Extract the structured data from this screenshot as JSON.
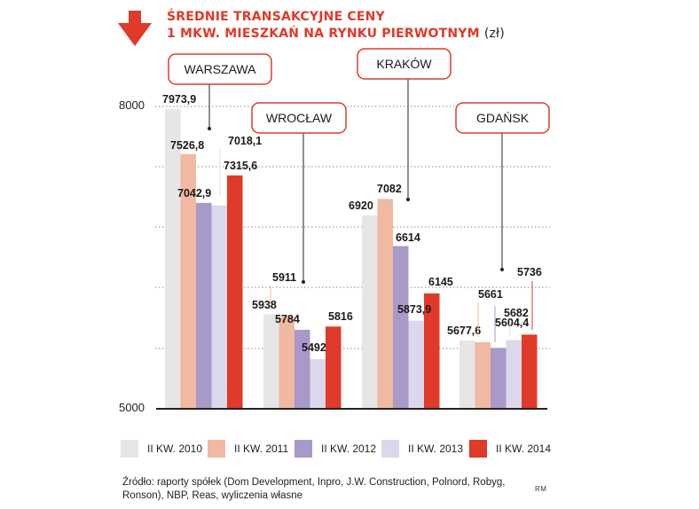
{
  "header": {
    "title_line1": "ŚREDNIE TRANSAKCYJNE CENY",
    "title_line2": "1 MKW. MIESZKAŃ NA RYNKU PIERWOTNYM",
    "unit": "(zł)"
  },
  "footer": {
    "source_line1": "Źródło: raporty spółek (Dom Development, Inpro, J.W. Construction, Polnord, Robyg,",
    "source_line2": "Ronson), NBP, Reas, wyliczenia własne",
    "author": "RM"
  },
  "colors": {
    "accent": "#e03a2a",
    "series": [
      "#e6e6e6",
      "#f0b9a2",
      "#a899c8",
      "#dcd8ec",
      "#e03a2a"
    ],
    "box_border": "#e03a2a",
    "grid": "#888888"
  },
  "icons": {
    "title_marker": "arrow-down-icon"
  },
  "chart_data": {
    "type": "bar",
    "categories": [
      "WARSZAWA",
      "WROCŁAW",
      "KRAKÓW",
      "GDAŃSK"
    ],
    "series": [
      {
        "name": "II KW. 2010",
        "values": [
          7973.9,
          5938,
          6920,
          5677.6
        ],
        "labels": [
          "7973,9",
          "5938",
          "6920",
          "5677,6"
        ]
      },
      {
        "name": "II KW. 2011",
        "values": [
          7526.8,
          5911,
          7082,
          5661
        ],
        "labels": [
          "7526,8",
          "5911",
          "7082",
          "5661"
        ]
      },
      {
        "name": "II KW. 2012",
        "values": [
          7042.9,
          5784,
          6614,
          5604.4
        ],
        "labels": [
          "7042,9",
          "5784",
          "6614",
          "5604,4"
        ]
      },
      {
        "name": "II KW. 2013",
        "values": [
          7018.1,
          5492,
          5873.9,
          5682
        ],
        "labels": [
          "7018,1",
          "5492",
          "5873,9",
          "5682"
        ]
      },
      {
        "name": "II KW. 2014",
        "values": [
          7315.6,
          5816,
          6145,
          5736
        ],
        "labels": [
          "7315,6",
          "5816",
          "6145",
          "5736"
        ]
      }
    ],
    "yticks": [
      "5000",
      "8000"
    ],
    "ylim": [
      5000,
      8000
    ],
    "grid": "dotted horizontal",
    "legend": "bottom"
  }
}
